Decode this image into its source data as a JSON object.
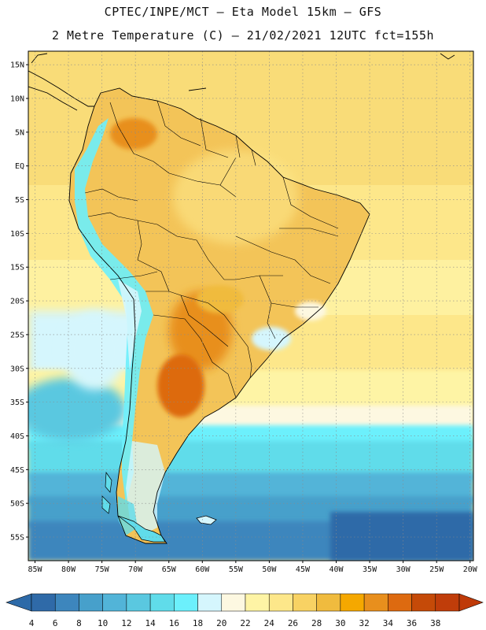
{
  "header": {
    "line1": "CPTEC/INPE/MCT –  Eta Model 15km – GFS",
    "line2": "2 Metre Temperature (C) – 21/02/2021 12UTC fct=155h"
  },
  "map": {
    "lon_range": [
      -86,
      -19.5
    ],
    "lat_range": [
      -58.5,
      17
    ],
    "lon_ticks": [
      {
        "v": -85,
        "label": "85W"
      },
      {
        "v": -80,
        "label": "80W"
      },
      {
        "v": -75,
        "label": "75W"
      },
      {
        "v": -70,
        "label": "70W"
      },
      {
        "v": -65,
        "label": "65W"
      },
      {
        "v": -60,
        "label": "60W"
      },
      {
        "v": -55,
        "label": "55W"
      },
      {
        "v": -50,
        "label": "50W"
      },
      {
        "v": -45,
        "label": "45W"
      },
      {
        "v": -40,
        "label": "40W"
      },
      {
        "v": -35,
        "label": "35W"
      },
      {
        "v": -30,
        "label": "30W"
      },
      {
        "v": -25,
        "label": "25W"
      },
      {
        "v": -20,
        "label": "20W"
      }
    ],
    "lat_ticks": [
      {
        "v": 15,
        "label": "15N"
      },
      {
        "v": 10,
        "label": "10N"
      },
      {
        "v": 5,
        "label": "5N"
      },
      {
        "v": 0,
        "label": "EQ"
      },
      {
        "v": -5,
        "label": "5S"
      },
      {
        "v": -10,
        "label": "10S"
      },
      {
        "v": -15,
        "label": "15S"
      },
      {
        "v": -20,
        "label": "20S"
      },
      {
        "v": -25,
        "label": "25S"
      },
      {
        "v": -30,
        "label": "30S"
      },
      {
        "v": -35,
        "label": "35S"
      },
      {
        "v": -40,
        "label": "40S"
      },
      {
        "v": -45,
        "label": "45S"
      },
      {
        "v": -50,
        "label": "50S"
      },
      {
        "v": -55,
        "label": "55S"
      }
    ],
    "grid": true
  },
  "colorbar": {
    "labels": [
      "4",
      "6",
      "8",
      "10",
      "12",
      "14",
      "16",
      "18",
      "20",
      "22",
      "24",
      "26",
      "28",
      "30",
      "32",
      "34",
      "36",
      "38"
    ],
    "colors": [
      "#2f6aa8",
      "#3d86bd",
      "#47a0cb",
      "#52b4d8",
      "#5ac8e0",
      "#60dcea",
      "#6cf0fc",
      "#d5f6fd",
      "#fdf8e1",
      "#fef4a5",
      "#fde78a",
      "#f8d263",
      "#f0bb3e",
      "#f5a800",
      "#e88f1d",
      "#dd6a10",
      "#c54a08",
      "#c03d0a"
    ],
    "under_color": "#2d6aa8",
    "over_color": "#bf3a08"
  }
}
